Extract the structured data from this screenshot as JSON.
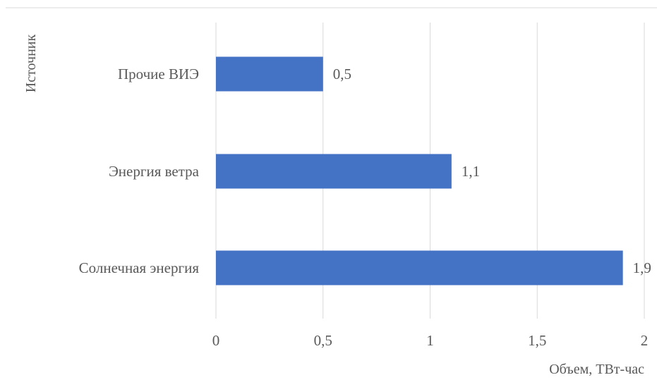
{
  "chart_data": {
    "type": "bar",
    "orientation": "horizontal",
    "categories": [
      "Солнечная энергия",
      "Энергия ветра",
      "Прочие ВИЭ"
    ],
    "values": [
      1.9,
      1.1,
      0.5
    ],
    "data_labels": [
      "1,9",
      "1,1",
      "0,5"
    ],
    "xlabel": "Объем, ТВт-час",
    "ylabel": "Источник",
    "xlim": [
      0,
      2
    ],
    "x_ticks": [
      0,
      0.5,
      1,
      1.5,
      2
    ],
    "x_tick_labels": [
      "0",
      "0,5",
      "1",
      "1,5",
      "2"
    ],
    "grid": "vertical",
    "legend": "none",
    "bar_color": "#4472C4",
    "grid_color": "#D9D9D9"
  }
}
